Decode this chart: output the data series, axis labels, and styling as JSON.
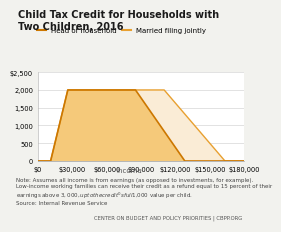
{
  "title": "Child Tax Credit for Households with\nTwo Children, 2016",
  "xlabel": "Income",
  "ylim": [
    0,
    2500
  ],
  "xlim": [
    0,
    180000
  ],
  "yticks": [
    0,
    500,
    1000,
    1500,
    2000,
    2500
  ],
  "ytick_labels": [
    "0",
    "500",
    "1,000",
    "1,500",
    "2,000",
    "$2,500"
  ],
  "xticks": [
    0,
    30000,
    60000,
    90000,
    120000,
    150000,
    180000
  ],
  "xtick_labels": [
    "$0",
    "$30,000",
    "$60,000",
    "$90,000",
    "$120,000",
    "$150,000",
    "$180,000"
  ],
  "hoh_x": [
    0,
    11000,
    26000,
    85000,
    128000,
    180000
  ],
  "hoh_y": [
    0,
    0,
    2000,
    2000,
    0,
    0
  ],
  "hoh_line_color": "#cc7700",
  "hoh_fill_color": "#f5c97a",
  "hoh_label": "Head of household",
  "mfj_x": [
    0,
    11000,
    26000,
    110000,
    163000,
    180000
  ],
  "mfj_y": [
    0,
    0,
    2000,
    2000,
    0,
    0
  ],
  "mfj_line_color": "#e8a030",
  "mfj_fill_color": "#faecd6",
  "mfj_label": "Married filing jointly",
  "note_text": "Note: Assumes all income is from earnings (as opposed to investments, for example).\nLow-income working families can receive their credit as a refund equal to 15 percent of their\nearnings above $3,000, up to the credit's full $1,000 value per child.\nSource: Internal Revenue Service",
  "footer_text": "CENTER ON BUDGET AND POLICY PRIORITIES | CBPP.ORG",
  "title_fontsize": 7.0,
  "tick_fontsize": 4.8,
  "note_fontsize": 4.0,
  "footer_fontsize": 3.8,
  "legend_fontsize": 5.0,
  "xlabel_fontsize": 5.0,
  "bg_color": "#f2f2ee",
  "plot_bg_color": "#ffffff",
  "footer_bg_color": "#d5d5cf",
  "xlabel_bg_color": "#d5d5cf"
}
